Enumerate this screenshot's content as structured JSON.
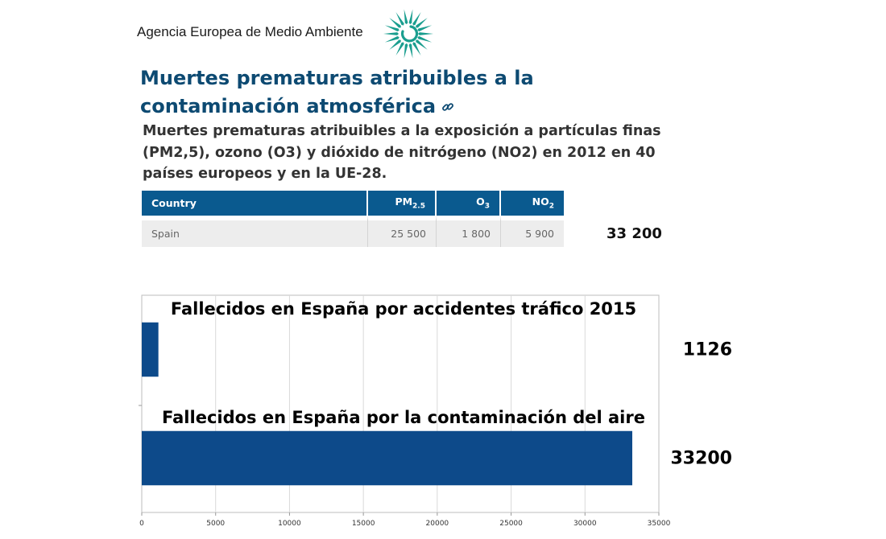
{
  "header": {
    "brand": "Agencia Europea de Medio Ambiente",
    "title": "Muertes prematuras atribuibles a la contaminación atmosférica",
    "subtitle": "Muertes prematuras atribuibles a la exposición a partículas finas (PM2,5), ozono (O3) y dióxido de nitrógeno (NO2) en 2012 en 40 países europeos y en la UE-28.",
    "logo_color": "#1a9e8f",
    "link_icon": "link-icon"
  },
  "table": {
    "columns": {
      "country": "Country",
      "pm_base": "PM",
      "pm_sub": "2.5",
      "o_base": "O",
      "o_sub": "3",
      "no_base": "NO",
      "no_sub": "2"
    },
    "rows": [
      {
        "country": "Spain",
        "pm25": "25 500",
        "o3": "1 800",
        "no2": "5 900"
      }
    ],
    "header_color": "#0a5a8f"
  },
  "total_label": "33 200",
  "chart_data": {
    "type": "bar",
    "orientation": "horizontal",
    "categories": [
      "Fallecidos en España por accidentes tráfico 2015",
      "Fallecidos en España por la contaminación del aire"
    ],
    "values": [
      1126,
      33200
    ],
    "value_labels": [
      "1126",
      "33200"
    ],
    "xlim": [
      0,
      35000
    ],
    "xticks": [
      0,
      5000,
      10000,
      15000,
      20000,
      25000,
      30000,
      35000
    ],
    "xtick_labels": [
      "0",
      "5000",
      "10000",
      "15000",
      "20000",
      "25000",
      "30000",
      "35000"
    ],
    "grid": true,
    "bar_color": "#0d4a8a"
  }
}
